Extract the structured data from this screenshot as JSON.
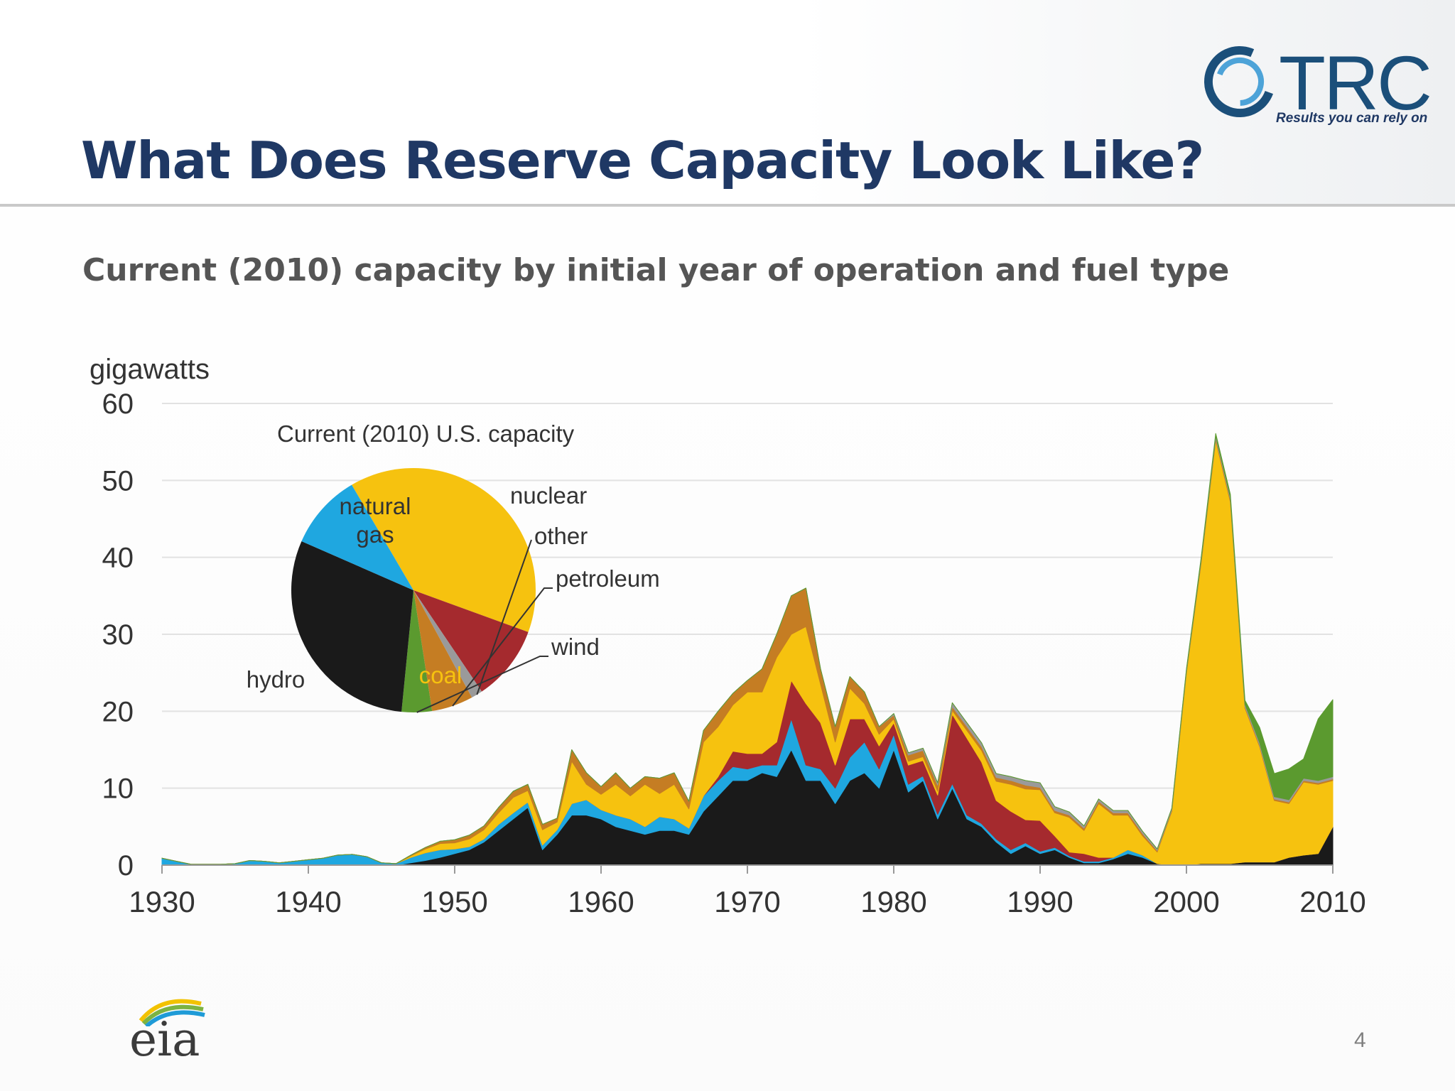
{
  "slide": {
    "title": "What Does Reserve Capacity Look Like?",
    "subtitle": "Current (2010) capacity by initial year of operation and fuel type",
    "page_number": "4"
  },
  "logo": {
    "name": "TRC",
    "tagline": "Results you can rely on"
  },
  "source_logo": {
    "text": "eia"
  },
  "colors": {
    "coal": "#1a1a1a",
    "hydro": "#1fa7e0",
    "nuclear": "#a52a2e",
    "natural_gas": "#f6c20f",
    "petroleum": "#c57d23",
    "other": "#9a9a9a",
    "wind": "#5b9a2f",
    "title": "#1f3864"
  },
  "chart_data": [
    {
      "type": "area",
      "stacked": true,
      "ylabel": "gigawatts",
      "xlim": [
        1930,
        2010
      ],
      "ylim": [
        0,
        60
      ],
      "yticks": [
        0,
        10,
        20,
        30,
        40,
        50,
        60
      ],
      "xticks": [
        1930,
        1940,
        1950,
        1960,
        1970,
        1980,
        1990,
        2000,
        2010
      ],
      "grid": true,
      "x": [
        1930,
        1931,
        1932,
        1933,
        1934,
        1935,
        1936,
        1937,
        1938,
        1939,
        1940,
        1941,
        1942,
        1943,
        1944,
        1945,
        1946,
        1947,
        1948,
        1949,
        1950,
        1951,
        1952,
        1953,
        1954,
        1955,
        1956,
        1957,
        1958,
        1959,
        1960,
        1961,
        1962,
        1963,
        1964,
        1965,
        1966,
        1967,
        1968,
        1969,
        1970,
        1971,
        1972,
        1973,
        1974,
        1975,
        1976,
        1977,
        1978,
        1979,
        1980,
        1981,
        1982,
        1983,
        1984,
        1985,
        1986,
        1987,
        1988,
        1989,
        1990,
        1991,
        1992,
        1993,
        1994,
        1995,
        1996,
        1997,
        1998,
        1999,
        2000,
        2001,
        2002,
        2003,
        2004,
        2005,
        2006,
        2007,
        2008,
        2009,
        2010
      ],
      "series": [
        {
          "key": "coal",
          "values": [
            0,
            0,
            0,
            0,
            0,
            0,
            0,
            0,
            0,
            0,
            0,
            0,
            0,
            0,
            0,
            0,
            0,
            0.3,
            0.6,
            1.0,
            1.5,
            2.0,
            3.0,
            4.5,
            6.0,
            7.5,
            2.0,
            4.0,
            6.5,
            6.5,
            6.0,
            5.0,
            4.5,
            4.0,
            4.5,
            4.5,
            4.0,
            7.0,
            9.0,
            11.0,
            11.0,
            12.0,
            11.5,
            15.0,
            11.0,
            11.0,
            8.0,
            11.0,
            12.0,
            10.0,
            15.0,
            9.5,
            11.0,
            6.0,
            10.0,
            6.0,
            5.0,
            3.0,
            1.5,
            2.5,
            1.5,
            2.0,
            1.0,
            0.3,
            0.3,
            0.8,
            1.5,
            1.0,
            0.2,
            0,
            0,
            0.2,
            0.2,
            0.2,
            0.4,
            0.4,
            0.4,
            1.0,
            1.3,
            1.5,
            5.0
          ]
        },
        {
          "key": "hydro",
          "values": [
            0.9,
            0.5,
            0.1,
            0.1,
            0.1,
            0.2,
            0.6,
            0.5,
            0.3,
            0.5,
            0.7,
            0.9,
            1.3,
            1.4,
            1.1,
            0.3,
            0.2,
            0.7,
            1.0,
            1.0,
            0.6,
            0.4,
            0.4,
            0.8,
            0.8,
            0.7,
            0.6,
            0.6,
            1.5,
            2.0,
            1.2,
            1.5,
            1.5,
            1.0,
            1.8,
            1.5,
            0.8,
            2.0,
            2.0,
            1.8,
            1.5,
            1.0,
            1.5,
            4.0,
            2.0,
            1.5,
            2.0,
            3.0,
            4.0,
            2.5,
            2.0,
            1.0,
            0.6,
            0.6,
            0.6,
            0.5,
            0.4,
            0.4,
            0.5,
            0.4,
            0.3,
            0.3,
            0.2,
            0.2,
            0.2,
            0.2,
            0.5,
            0.3,
            0,
            0,
            0,
            0,
            0,
            0,
            0,
            0,
            0,
            0,
            0,
            0,
            0
          ]
        },
        {
          "key": "nuclear",
          "values": [
            0,
            0,
            0,
            0,
            0,
            0,
            0,
            0,
            0,
            0,
            0,
            0,
            0,
            0,
            0,
            0,
            0,
            0,
            0,
            0,
            0,
            0,
            0,
            0,
            0,
            0,
            0,
            0,
            0,
            0,
            0,
            0,
            0,
            0,
            0,
            0,
            0,
            0,
            0.5,
            2.0,
            2.0,
            1.5,
            3.0,
            5.0,
            8.0,
            6.0,
            3.0,
            5.0,
            3.0,
            3.0,
            1.5,
            2.5,
            2.0,
            2.5,
            9.0,
            10.0,
            8.0,
            5.0,
            5.0,
            3.0,
            4.0,
            1.5,
            0.5,
            1.0,
            0.5,
            0,
            0,
            0,
            0,
            0,
            0,
            0,
            0,
            0,
            0,
            0,
            0,
            0,
            0,
            0,
            0
          ]
        },
        {
          "key": "natural_gas",
          "values": [
            0,
            0,
            0,
            0,
            0,
            0,
            0,
            0,
            0,
            0,
            0,
            0,
            0,
            0,
            0,
            0,
            0,
            0.2,
            0.5,
            0.8,
            0.8,
            1.0,
            1.2,
            1.5,
            2.0,
            1.5,
            2.0,
            1.0,
            5.5,
            2.0,
            2.0,
            4.0,
            3.0,
            5.5,
            3.0,
            4.5,
            2.5,
            7.0,
            6.5,
            6.0,
            8.0,
            8.0,
            11.0,
            6.0,
            10.0,
            5.0,
            3.0,
            4.0,
            2.0,
            1.5,
            0.5,
            0.5,
            0.5,
            0.5,
            0.5,
            1.0,
            1.5,
            2.5,
            3.5,
            4.0,
            4.0,
            3.0,
            4.5,
            3.0,
            7.0,
            5.5,
            4.5,
            2.5,
            1.5,
            7.0,
            25.0,
            39.0,
            55.0,
            47.0,
            20.0,
            15.0,
            8.0,
            7.0,
            9.5,
            9.0,
            6.0
          ]
        },
        {
          "key": "petroleum",
          "values": [
            0,
            0,
            0,
            0,
            0,
            0,
            0,
            0,
            0,
            0,
            0,
            0,
            0,
            0,
            0,
            0,
            0,
            0.1,
            0.2,
            0.3,
            0.4,
            0.5,
            0.5,
            0.7,
            0.8,
            0.8,
            0.7,
            0.5,
            1.5,
            1.5,
            1.0,
            1.5,
            1.0,
            1.0,
            2.0,
            1.5,
            1.0,
            1.5,
            2.0,
            1.5,
            1.5,
            3.0,
            3.0,
            5.0,
            5.0,
            2.0,
            2.0,
            1.5,
            1.5,
            1.0,
            0.5,
            0.8,
            0.8,
            0.8,
            0.5,
            0.5,
            0.5,
            0.5,
            0.5,
            0.5,
            0.3,
            0.3,
            0.3,
            0.3,
            0.3,
            0.3,
            0.3,
            0.3,
            0.2,
            0.2,
            0.2,
            0.3,
            0.3,
            0.3,
            0.2,
            0.2,
            0.2,
            0.2,
            0.2,
            0.2,
            0.2
          ]
        },
        {
          "key": "other",
          "values": [
            0,
            0,
            0,
            0,
            0,
            0,
            0,
            0,
            0,
            0,
            0,
            0,
            0,
            0,
            0,
            0,
            0,
            0,
            0,
            0,
            0,
            0,
            0,
            0,
            0,
            0,
            0,
            0,
            0,
            0,
            0,
            0,
            0,
            0,
            0,
            0,
            0,
            0,
            0,
            0,
            0,
            0,
            0,
            0,
            0,
            0,
            0,
            0,
            0,
            0,
            0.2,
            0.3,
            0.3,
            0.3,
            0.5,
            0.5,
            0.5,
            0.5,
            0.5,
            0.6,
            0.6,
            0.5,
            0.4,
            0.3,
            0.3,
            0.3,
            0.3,
            0.3,
            0.2,
            0.2,
            0.2,
            0.2,
            0.3,
            0.3,
            0.3,
            0.3,
            0.3,
            0.3,
            0.3,
            0.3,
            0.3
          ]
        },
        {
          "key": "wind",
          "values": [
            0,
            0,
            0,
            0,
            0,
            0,
            0,
            0,
            0,
            0,
            0,
            0,
            0,
            0,
            0,
            0,
            0,
            0,
            0,
            0,
            0,
            0,
            0,
            0,
            0,
            0,
            0,
            0,
            0,
            0,
            0,
            0,
            0,
            0,
            0,
            0,
            0,
            0,
            0,
            0,
            0,
            0,
            0,
            0,
            0,
            0,
            0,
            0,
            0,
            0,
            0,
            0,
            0,
            0,
            0,
            0,
            0,
            0,
            0,
            0,
            0,
            0,
            0,
            0,
            0,
            0,
            0,
            0,
            0,
            0,
            0.1,
            0.2,
            0.3,
            0.4,
            0.5,
            2.0,
            3.0,
            4.0,
            2.5,
            8.0,
            10.0
          ]
        }
      ]
    },
    {
      "type": "pie",
      "title": "Current (2010) U.S. capacity",
      "slices": [
        {
          "key": "natural_gas",
          "label": "natural\ngas",
          "value": 39
        },
        {
          "key": "nuclear",
          "label": "nuclear",
          "value": 10
        },
        {
          "key": "other",
          "label": "other",
          "value": 1.5
        },
        {
          "key": "petroleum",
          "label": "petroleum",
          "value": 5.5
        },
        {
          "key": "wind",
          "label": "wind",
          "value": 4
        },
        {
          "key": "coal",
          "label": "coal",
          "value": 30
        },
        {
          "key": "hydro",
          "label": "hydro",
          "value": 10
        }
      ]
    }
  ]
}
